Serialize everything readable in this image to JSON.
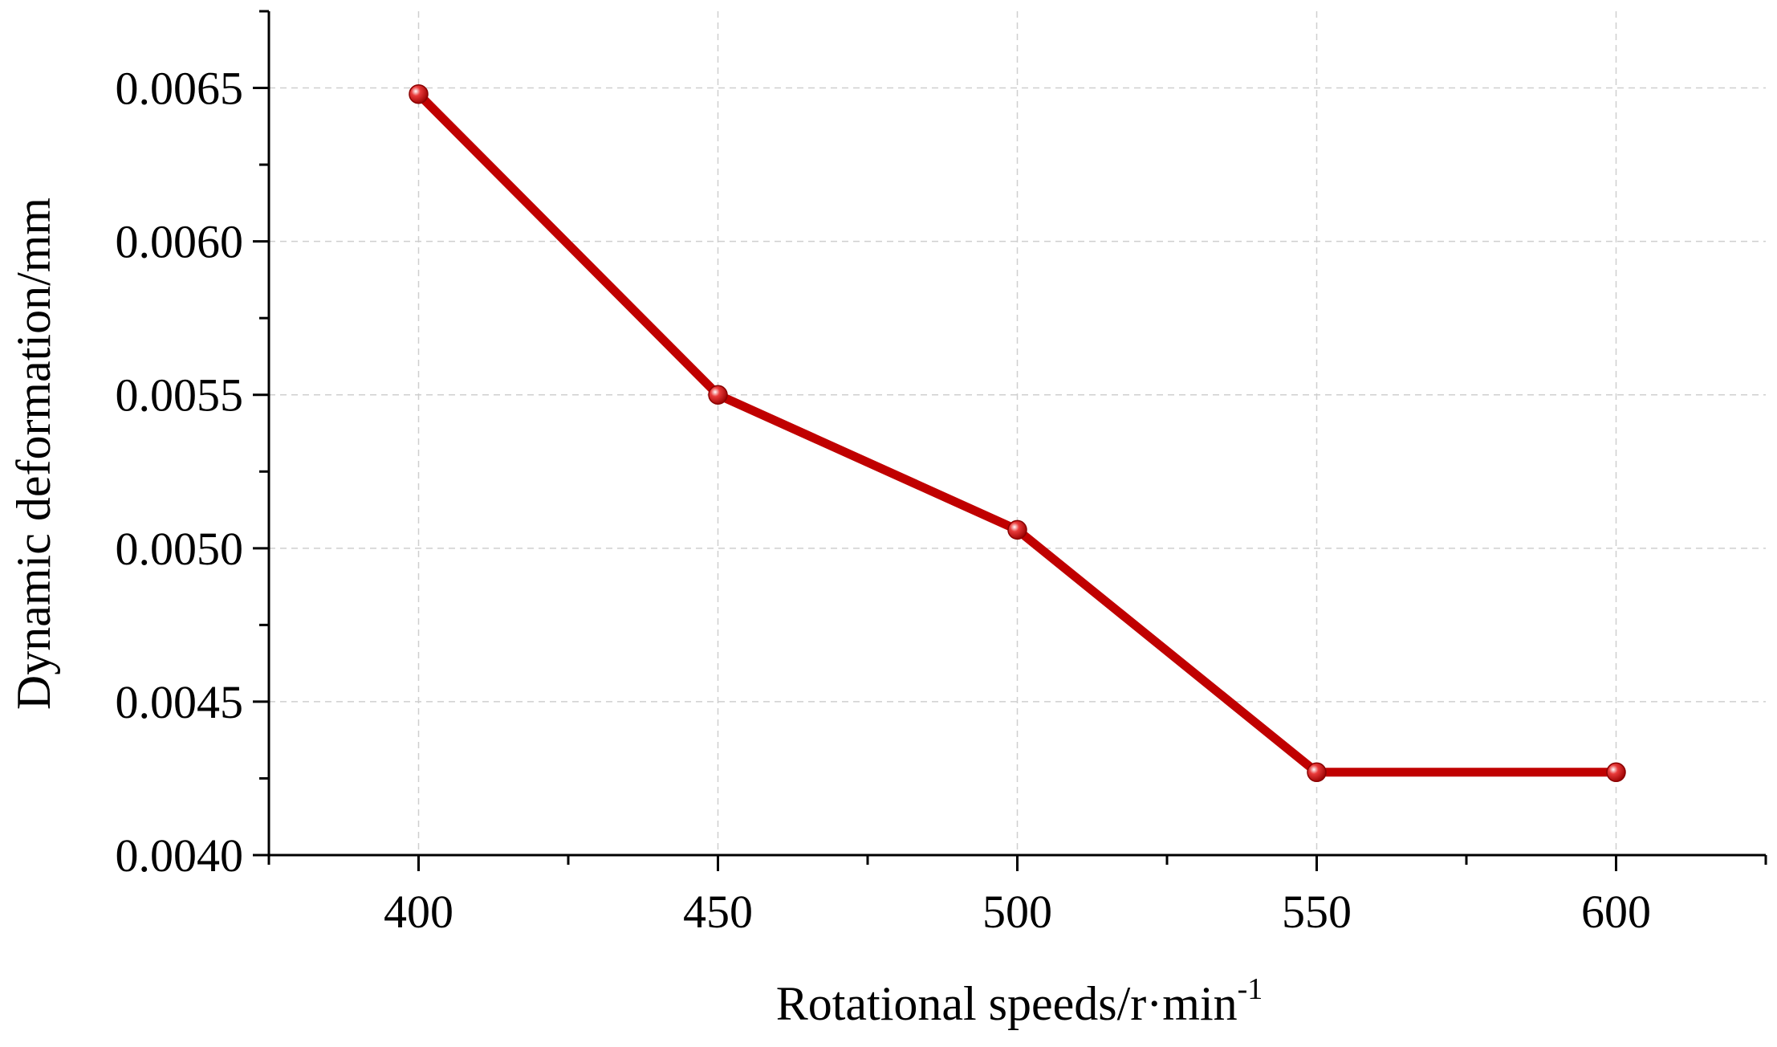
{
  "chart_data": {
    "type": "line",
    "title": "",
    "xlabel": "Rotational speeds/r·min",
    "xlabel_superscript": "-1",
    "ylabel": "Dynamic deformation/mm",
    "x": [
      400,
      450,
      500,
      550,
      600
    ],
    "series": [
      {
        "name": "Dynamic deformation",
        "values": [
          0.00648,
          0.0055,
          0.00506,
          0.00427,
          0.00427
        ]
      }
    ],
    "xlim": [
      375,
      625
    ],
    "ylim": [
      0.004,
      0.00675
    ],
    "xticks": [
      400,
      450,
      500,
      550,
      600
    ],
    "xtick_labels": [
      "400",
      "450",
      "500",
      "550",
      "600"
    ],
    "yticks": [
      0.004,
      0.0045,
      0.005,
      0.0055,
      0.006,
      0.0065
    ],
    "ytick_labels": [
      "0.0040",
      "0.0045",
      "0.0050",
      "0.0055",
      "0.0060",
      "0.0065"
    ],
    "grid": true,
    "legend": "none",
    "colors": {
      "line": "#c00000",
      "marker": "#c00000",
      "grid": "#cfcfcf",
      "axis": "#000000"
    }
  }
}
